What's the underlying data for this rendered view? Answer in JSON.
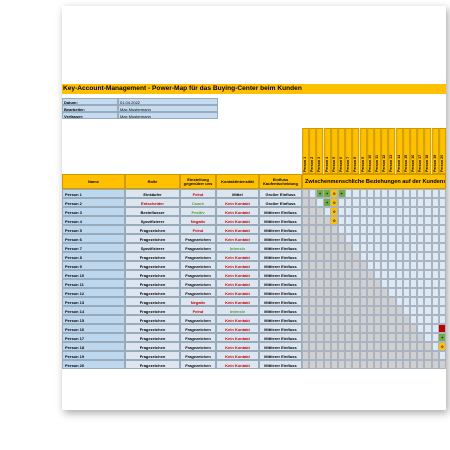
{
  "title": "Key-Account-Management - Power-Map für das Buying-Center beim Kunden",
  "meta": [
    {
      "label": "Datum:",
      "value": "01.04.2022"
    },
    {
      "label": "Bearbeiter:",
      "value": "Max Mustermann"
    },
    {
      "label": "Verfasser:",
      "value": "Max Mustermann"
    }
  ],
  "table": {
    "headers": [
      "Name",
      "Rolle",
      "Einstellung gegenüber uns",
      "Kontaktintensität",
      "Einfluss Kaufentscheidung"
    ],
    "matrix_title": "Zwischenmenschliche Beziehungen auf der Kundenseite",
    "persons": [
      "Person 1",
      "Person 2",
      "Person 3",
      "Person 4",
      "Person 5",
      "Person 6",
      "Person 7",
      "Person 8",
      "Person 9",
      "Person 10",
      "Person 11",
      "Person 12",
      "Person 13",
      "Person 14",
      "Person 15",
      "Person 16",
      "Person 17",
      "Person 18",
      "Person 19",
      "Person 20"
    ],
    "rows": [
      [
        "Person 1",
        "Einkäufer",
        "Feind",
        "Mittel",
        "Großer Einfluss"
      ],
      [
        "Person 2",
        "Entscheider",
        "Coach",
        "Kein Kontakt",
        "Großer Einfluss"
      ],
      [
        "Person 3",
        "Beeinflusser",
        "Positiv",
        "Kein Kontakt",
        "Mittlerer Einfluss"
      ],
      [
        "Person 4",
        "Spezifizierer",
        "Negativ",
        "Kein Kontakt",
        "Mittlerer Einfluss"
      ],
      [
        "Person 5",
        "Fragezeichen",
        "Feind",
        "Kein Kontakt",
        "Mittlerer Einfluss"
      ],
      [
        "Person 6",
        "Fragezeichen",
        "Fragezeichen",
        "Kein Kontakt",
        "Mittlerer Einfluss"
      ],
      [
        "Person 7",
        "Spezifizierer",
        "Fragezeichen",
        "Intensiv",
        "Mittlerer Einfluss"
      ],
      [
        "Person 8",
        "Fragezeichen",
        "Fragezeichen",
        "Kein Kontakt",
        "Mittlerer Einfluss"
      ],
      [
        "Person 9",
        "Fragezeichen",
        "Fragezeichen",
        "Kein Kontakt",
        "Mittlerer Einfluss"
      ],
      [
        "Person 10",
        "Fragezeichen",
        "Fragezeichen",
        "Kein Kontakt",
        "Mittlerer Einfluss"
      ],
      [
        "Person 11",
        "Fragezeichen",
        "Fragezeichen",
        "Kein Kontakt",
        "Mittlerer Einfluss"
      ],
      [
        "Person 12",
        "Fragezeichen",
        "Fragezeichen",
        "Kein Kontakt",
        "Mittlerer Einfluss"
      ],
      [
        "Person 13",
        "Fragezeichen",
        "Negativ",
        "Kein Kontakt",
        "Mittlerer Einfluss"
      ],
      [
        "Person 14",
        "Fragezeichen",
        "Feind",
        "Intensiv",
        "Mittlerer Einfluss"
      ],
      [
        "Person 15",
        "Fragezeichen",
        "Fragezeichen",
        "Kein Kontakt",
        "Mittlerer Einfluss"
      ],
      [
        "Person 16",
        "Fragezeichen",
        "Fragezeichen",
        "Kein Kontakt",
        "Mittlerer Einfluss"
      ],
      [
        "Person 17",
        "Fragezeichen",
        "Fragezeichen",
        "Kein Kontakt",
        "Mittlerer Einfluss"
      ],
      [
        "Person 18",
        "Fragezeichen",
        "Fragezeichen",
        "Kein Kontakt",
        "Mittlerer Einfluss"
      ],
      [
        "Person 19",
        "Fragezeichen",
        "Fragezeichen",
        "Kein Kontakt",
        "Mittlerer Einfluss"
      ],
      [
        "Person 20",
        "Fragezeichen",
        "Fragezeichen",
        "Kein Kontakt",
        "Mittlerer Einfluss"
      ]
    ],
    "relations": [
      {
        "row": 0,
        "col": 2,
        "label": "+"
      },
      {
        "row": 0,
        "col": 3,
        "label": "+"
      },
      {
        "row": 0,
        "col": 4,
        "label": "0"
      },
      {
        "row": 0,
        "col": 5,
        "label": "+"
      },
      {
        "row": 1,
        "col": 3,
        "label": "+"
      },
      {
        "row": 1,
        "col": 4,
        "label": "0"
      },
      {
        "row": 2,
        "col": 4,
        "label": "0"
      },
      {
        "row": 3,
        "col": 4,
        "label": "0"
      },
      {
        "row": 15,
        "col": 19,
        "label": "-"
      },
      {
        "row": 16,
        "col": 19,
        "label": "+"
      },
      {
        "row": 17,
        "col": 19,
        "label": "0"
      }
    ]
  },
  "text_colors": {
    "Feind": "#c00000",
    "Negativ": "#c00000",
    "Entscheider": "#c00000",
    "Kein Kontakt": "#c00000",
    "Coach": "#4e9a2a",
    "Positiv": "#4e9a2a",
    "Intensiv": "#4e9a2a"
  },
  "relation_colors": {
    "+": "#70ad47",
    "0": "#ffc000",
    "-": "#c00000"
  }
}
